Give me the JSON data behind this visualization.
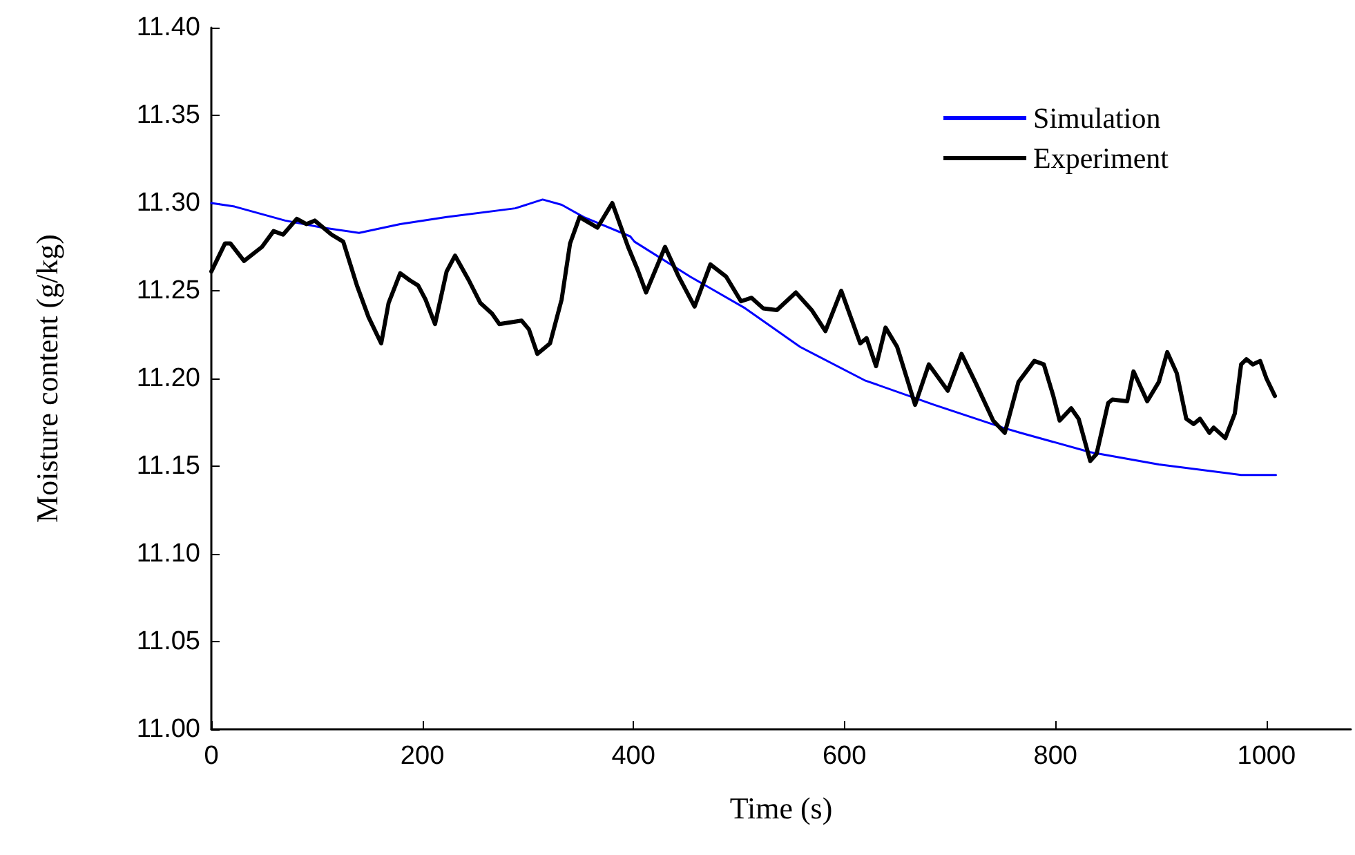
{
  "chart_data": {
    "type": "line",
    "xlabel": "Time (s)",
    "ylabel": "Moisture content (g/kg)",
    "xlim": [
      0,
      1080
    ],
    "xticks": [
      0,
      200,
      400,
      600,
      800,
      1000
    ],
    "ylim": [
      11.0,
      11.4
    ],
    "yticks": [
      {
        "value": 11.0,
        "label": "11.00"
      },
      {
        "value": 11.05,
        "label": "11.05"
      },
      {
        "value": 11.1,
        "label": "11.10"
      },
      {
        "value": 11.15,
        "label": "11.15"
      },
      {
        "value": 11.2,
        "label": "11.20"
      },
      {
        "value": 11.25,
        "label": "11.25"
      },
      {
        "value": 11.3,
        "label": "11.30"
      },
      {
        "value": 11.35,
        "label": "11.35"
      },
      {
        "value": 11.4,
        "label": "11.40"
      }
    ],
    "grid": false,
    "legend": "top right",
    "marker": "none",
    "line_style": "solid",
    "series": [
      {
        "name": "Simulation",
        "color": "#0000ff",
        "x": [
          0,
          22,
          70,
          105,
          140,
          179,
          223,
          288,
          314,
          332,
          353,
          397,
          401,
          454,
          506,
          558,
          619,
          685,
          750,
          767,
          833,
          898,
          976,
          1009
        ],
        "values": [
          11.3,
          11.298,
          11.29,
          11.286,
          11.283,
          11.288,
          11.292,
          11.297,
          11.302,
          11.299,
          11.292,
          11.281,
          11.278,
          11.258,
          11.24,
          11.218,
          11.199,
          11.185,
          11.172,
          11.169,
          11.158,
          11.151,
          11.145,
          11.145
        ]
      },
      {
        "name": "Experiment",
        "color": "#000000",
        "x": [
          0,
          13,
          18,
          31,
          48,
          59,
          68,
          81,
          90,
          98,
          114,
          125,
          138,
          149,
          161,
          168,
          179,
          188,
          196,
          203,
          212,
          223,
          231,
          244,
          255,
          266,
          273,
          294,
          301,
          309,
          321,
          332,
          340,
          349,
          366,
          380,
          395,
          404,
          412,
          430,
          443,
          458,
          473,
          488,
          502,
          512,
          523,
          536,
          554,
          569,
          582,
          597,
          615,
          621,
          630,
          639,
          650,
          667,
          680,
          698,
          711,
          724,
          741,
          752,
          765,
          780,
          789,
          798,
          804,
          815,
          822,
          833,
          839,
          850,
          854,
          868,
          874,
          887,
          898,
          906,
          915,
          924,
          931,
          937,
          946,
          950,
          961,
          970,
          976,
          981,
          987,
          994,
          1000,
          1008
        ],
        "values": [
          11.261,
          11.277,
          11.277,
          11.267,
          11.275,
          11.284,
          11.282,
          11.291,
          11.288,
          11.29,
          11.282,
          11.278,
          11.253,
          11.235,
          11.22,
          11.243,
          11.26,
          11.256,
          11.253,
          11.245,
          11.231,
          11.261,
          11.27,
          11.256,
          11.243,
          11.237,
          11.231,
          11.233,
          11.228,
          11.214,
          11.22,
          11.245,
          11.277,
          11.292,
          11.286,
          11.3,
          11.275,
          11.262,
          11.249,
          11.275,
          11.258,
          11.241,
          11.265,
          11.258,
          11.244,
          11.246,
          11.24,
          11.239,
          11.249,
          11.239,
          11.227,
          11.25,
          11.22,
          11.223,
          11.207,
          11.229,
          11.218,
          11.185,
          11.208,
          11.193,
          11.214,
          11.198,
          11.176,
          11.169,
          11.198,
          11.21,
          11.208,
          11.19,
          11.176,
          11.183,
          11.177,
          11.153,
          11.157,
          11.186,
          11.188,
          11.187,
          11.204,
          11.187,
          11.198,
          11.215,
          11.203,
          11.177,
          11.174,
          11.177,
          11.169,
          11.172,
          11.166,
          11.18,
          11.208,
          11.211,
          11.208,
          11.21,
          11.2,
          11.19
        ]
      }
    ]
  }
}
